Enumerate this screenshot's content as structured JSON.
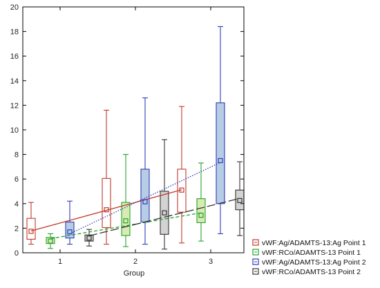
{
  "chart_data": {
    "type": "box",
    "title": "",
    "xlabel": "Group",
    "ylabel": "",
    "ylim": [
      0,
      20
    ],
    "yticks": [
      0,
      2,
      4,
      6,
      8,
      10,
      12,
      14,
      16,
      18,
      20
    ],
    "categories": [
      "1",
      "2",
      "3"
    ],
    "grid": false,
    "legend_position": "bottom-right",
    "series": [
      {
        "name": "vWF:Ag/ADAMTS-13:Ag Point 1",
        "color": "#c0392b",
        "fill": "#ffffff",
        "line_style": "solid",
        "boxes": [
          {
            "whisker_low": 0.7,
            "q1": 1.1,
            "median": 1.75,
            "q3": 2.8,
            "whisker_high": 4.1
          },
          {
            "whisker_low": 0.7,
            "q1": 2.05,
            "median": 3.5,
            "q3": 6.05,
            "whisker_high": 11.6
          },
          {
            "whisker_low": 0.8,
            "q1": 3.3,
            "median": 5.1,
            "q3": 6.8,
            "whisker_high": 11.9
          }
        ]
      },
      {
        "name": "vWF:RCo/ADAMTS-13 Point 1",
        "color": "#27a12a",
        "fill": "#d7ecb4",
        "line_style": "dashed",
        "boxes": [
          {
            "whisker_low": 0.35,
            "q1": 0.75,
            "median": 0.95,
            "q3": 1.25,
            "whisker_high": 1.55
          },
          {
            "whisker_low": 0.5,
            "q1": 1.4,
            "median": 2.6,
            "q3": 4.1,
            "whisker_high": 8.0
          },
          {
            "whisker_low": 0.95,
            "q1": 2.45,
            "median": 3.05,
            "q3": 4.4,
            "whisker_high": 7.3
          }
        ]
      },
      {
        "name": "vWF:Ag/ADAMTS-13:Ag Point 2",
        "color": "#2d3cb5",
        "fill": "#b7cde6",
        "line_style": "dotted",
        "boxes": [
          {
            "whisker_low": 0.7,
            "q1": 1.2,
            "median": 1.7,
            "q3": 2.5,
            "whisker_high": 4.2
          },
          {
            "whisker_low": 0.7,
            "q1": 2.5,
            "median": 4.15,
            "q3": 6.8,
            "whisker_high": 12.6
          },
          {
            "whisker_low": 1.55,
            "q1": 4.0,
            "median": 7.5,
            "q3": 12.2,
            "whisker_high": 18.4
          }
        ]
      },
      {
        "name": "vWF:RCo/ADAMTS-13 Point 2",
        "color": "#333333",
        "fill": "#d3d3d3",
        "line_style": "longdash",
        "boxes": [
          {
            "whisker_low": 0.55,
            "q1": 0.95,
            "median": 1.2,
            "q3": 1.45,
            "whisker_high": 1.9
          },
          {
            "whisker_low": 0.3,
            "q1": 1.5,
            "median": 3.25,
            "q3": 5.0,
            "whisker_high": 9.2
          },
          {
            "whisker_low": 1.4,
            "q1": 3.5,
            "median": 4.25,
            "q3": 5.1,
            "whisker_high": 7.4
          }
        ]
      }
    ]
  }
}
